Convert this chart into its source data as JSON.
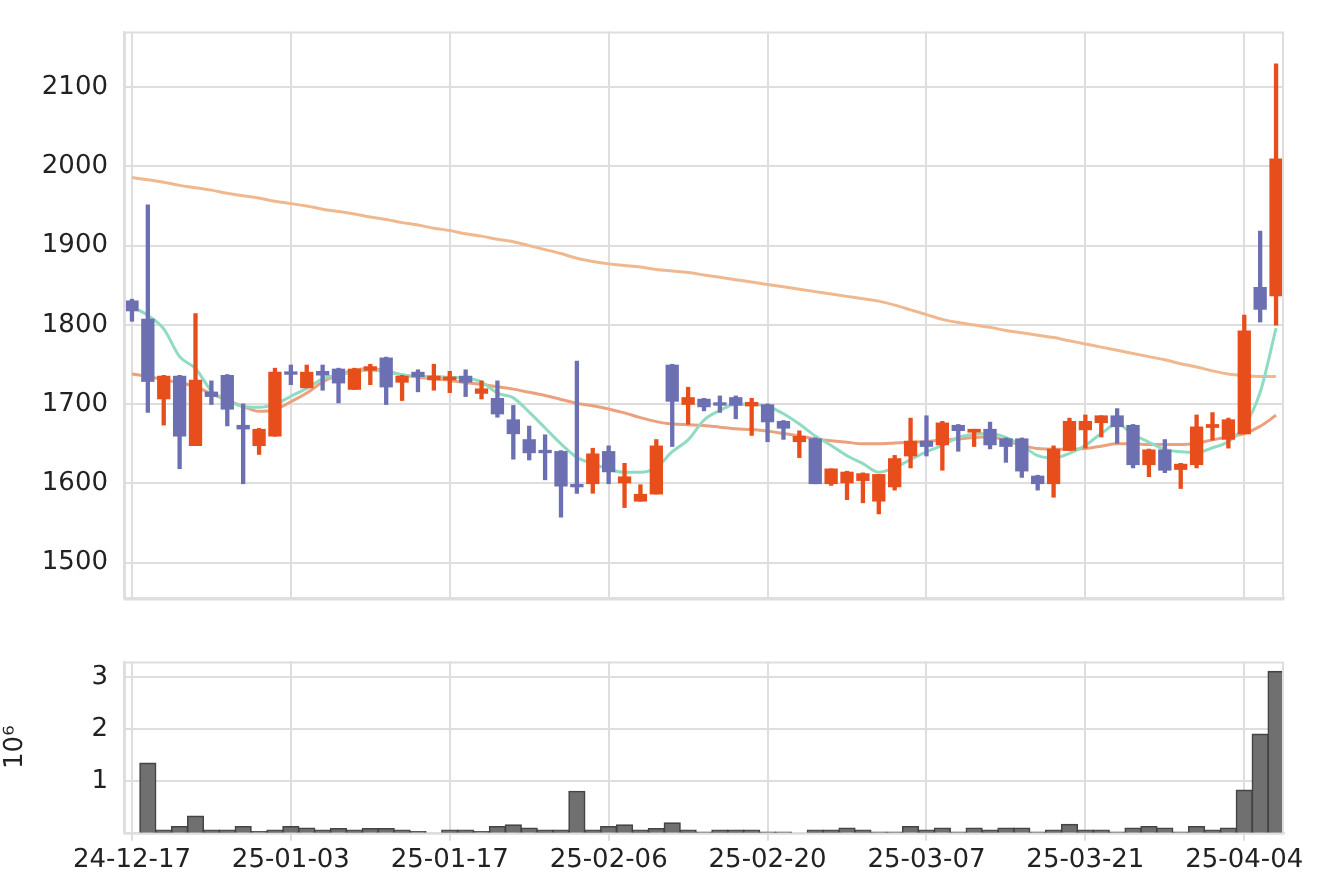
{
  "chart_data": [
    {
      "type": "candlestick",
      "categories": [
        null,
        null,
        null,
        null,
        null,
        null,
        null,
        null,
        null,
        null,
        null,
        null,
        null,
        null,
        null,
        null,
        null,
        null,
        null,
        null,
        null,
        null,
        null,
        null,
        null,
        null,
        null,
        null,
        null,
        null,
        null,
        null,
        null,
        null,
        null,
        null,
        null,
        null,
        null,
        null,
        null,
        null,
        null,
        null,
        null,
        null,
        null,
        null,
        null,
        null,
        null,
        null,
        null,
        null,
        null,
        null,
        null,
        null,
        null,
        null,
        null,
        null,
        null,
        null,
        null,
        null,
        null,
        null,
        null,
        null,
        null,
        null,
        null
      ],
      "ohlc": [
        [
          1830,
          1832,
          1805,
          1818
        ],
        [
          1807,
          1951,
          1690,
          1729
        ],
        [
          1707,
          1736,
          1674,
          1735
        ],
        [
          1735,
          1736,
          1619,
          1660
        ],
        [
          1648,
          1814,
          1648,
          1730
        ],
        [
          1715,
          1729,
          1700,
          1710
        ],
        [
          1736,
          1737,
          1673,
          1694
        ],
        [
          1673,
          1700,
          1600,
          1669
        ],
        [
          1648,
          1669,
          1637,
          1668
        ],
        [
          1660,
          1745,
          1660,
          1740
        ],
        [
          1740,
          1749,
          1725,
          1738
        ],
        [
          1721,
          1749,
          1721,
          1740
        ],
        [
          1741,
          1749,
          1718,
          1737
        ],
        [
          1744,
          1745,
          1702,
          1727
        ],
        [
          1719,
          1745,
          1719,
          1744
        ],
        [
          1743,
          1750,
          1725,
          1747
        ],
        [
          1758,
          1759,
          1700,
          1722
        ],
        [
          1728,
          1736,
          1705,
          1735
        ],
        [
          1740,
          1743,
          1716,
          1735
        ],
        [
          1731,
          1750,
          1718,
          1735
        ],
        [
          1731,
          1741,
          1715,
          1734
        ],
        [
          1735,
          1743,
          1710,
          1728
        ],
        [
          1714,
          1729,
          1707,
          1719
        ],
        [
          1707,
          1729,
          1684,
          1688
        ],
        [
          1680,
          1698,
          1631,
          1663
        ],
        [
          1655,
          1672,
          1630,
          1639
        ],
        [
          1641,
          1661,
          1605,
          1639
        ],
        [
          1640,
          1641,
          1558,
          1597
        ],
        [
          1598,
          1754,
          1588,
          1596
        ],
        [
          1600,
          1644,
          1588,
          1637
        ],
        [
          1640,
          1647,
          1600,
          1615
        ],
        [
          1601,
          1625,
          1570,
          1608
        ],
        [
          1578,
          1598,
          1578,
          1586
        ],
        [
          1587,
          1655,
          1587,
          1647
        ],
        [
          1749,
          1750,
          1647,
          1704
        ],
        [
          1700,
          1721,
          1675,
          1708
        ],
        [
          1706,
          1707,
          1692,
          1697
        ],
        [
          1701,
          1710,
          1690,
          1699
        ],
        [
          1708,
          1710,
          1682,
          1699
        ],
        [
          1698,
          1707,
          1661,
          1702
        ],
        [
          1699,
          1700,
          1653,
          1678
        ],
        [
          1678,
          1679,
          1656,
          1670
        ],
        [
          1653,
          1666,
          1633,
          1659
        ],
        [
          1656,
          1657,
          1600,
          1600
        ],
        [
          1600,
          1618,
          1598,
          1618
        ],
        [
          1601,
          1615,
          1580,
          1614
        ],
        [
          1604,
          1613,
          1576,
          1612
        ],
        [
          1578,
          1611,
          1562,
          1611
        ],
        [
          1596,
          1635,
          1592,
          1631
        ],
        [
          1635,
          1682,
          1620,
          1653
        ],
        [
          1653,
          1685,
          1635,
          1647
        ],
        [
          1649,
          1678,
          1617,
          1676
        ],
        [
          1673,
          1674,
          1641,
          1667
        ],
        [
          1665,
          1668,
          1647,
          1668
        ],
        [
          1668,
          1677,
          1644,
          1649
        ],
        [
          1656,
          1657,
          1627,
          1647
        ],
        [
          1656,
          1657,
          1608,
          1616
        ],
        [
          1609,
          1610,
          1592,
          1600
        ],
        [
          1600,
          1647,
          1583,
          1643
        ],
        [
          1642,
          1682,
          1642,
          1678
        ],
        [
          1668,
          1686,
          1645,
          1678
        ],
        [
          1677,
          1685,
          1659,
          1685
        ],
        [
          1685,
          1694,
          1651,
          1672
        ],
        [
          1673,
          1674,
          1620,
          1624
        ],
        [
          1624,
          1643,
          1609,
          1642
        ],
        [
          1642,
          1655,
          1614,
          1617
        ],
        [
          1618,
          1625,
          1594,
          1624
        ],
        [
          1624,
          1686,
          1620,
          1671
        ],
        [
          1671,
          1689,
          1655,
          1674
        ],
        [
          1656,
          1682,
          1645,
          1680
        ],
        [
          1663,
          1812,
          1663,
          1792
        ],
        [
          1847,
          1918,
          1804,
          1820
        ],
        [
          1837,
          2129,
          1800,
          2009
        ]
      ],
      "series": [
        {
          "type": "line",
          "color": "#8fdcc2",
          "values": [
            1823,
            1812,
            1795,
            1760,
            1745,
            1717,
            1705,
            1697,
            1696,
            1700,
            1710,
            1720,
            1732,
            1737,
            1741,
            1743,
            1741,
            1737,
            1735,
            1735,
            1734,
            1733,
            1728,
            1714,
            1708,
            1690,
            1670,
            1650,
            1633,
            1625,
            1618,
            1614,
            1614,
            1620,
            1640,
            1655,
            1680,
            1692,
            1700,
            1700,
            1697,
            1688,
            1675,
            1660,
            1648,
            1635,
            1625,
            1614,
            1620,
            1630,
            1640,
            1648,
            1658,
            1662,
            1663,
            1658,
            1648,
            1635,
            1632,
            1638,
            1648,
            1663,
            1675,
            1662,
            1652,
            1643,
            1640,
            1639,
            1645,
            1653,
            1672,
            1715,
            1796
          ]
        },
        {
          "type": "line",
          "color": "#eba17e",
          "values": [
            1738,
            1735,
            1731,
            1727,
            1722,
            1713,
            1705,
            1697,
            1691,
            1693,
            1703,
            1714,
            1728,
            1737,
            1743,
            1745,
            1742,
            1737,
            1734,
            1732,
            1730,
            1727,
            1725,
            1722,
            1719,
            1715,
            1711,
            1706,
            1701,
            1698,
            1694,
            1689,
            1683,
            1678,
            1675,
            1674,
            1673,
            1671,
            1669,
            1668,
            1666,
            1663,
            1660,
            1656,
            1654,
            1652,
            1650,
            1650,
            1651,
            1652,
            1653,
            1655,
            1656,
            1658,
            1659,
            1654,
            1648,
            1644,
            1643,
            1643,
            1644,
            1647,
            1650,
            1650,
            1649,
            1649,
            1649,
            1651,
            1655,
            1659,
            1663,
            1672,
            1686
          ]
        },
        {
          "type": "line",
          "color": "#f0b88e",
          "values": [
            1986,
            1983,
            1980,
            1976,
            1973,
            1970,
            1966,
            1963,
            1960,
            1956,
            1953,
            1950,
            1946,
            1943,
            1940,
            1936,
            1933,
            1929,
            1926,
            1922,
            1919,
            1915,
            1912,
            1908,
            1905,
            1900,
            1895,
            1890,
            1884,
            1880,
            1877,
            1875,
            1873,
            1870,
            1868,
            1866,
            1863,
            1860,
            1857,
            1854,
            1851,
            1848,
            1845,
            1842,
            1839,
            1836,
            1833,
            1830,
            1825,
            1819,
            1813,
            1807,
            1803,
            1800,
            1797,
            1793,
            1790,
            1787,
            1784,
            1780,
            1776,
            1772,
            1768,
            1764,
            1760,
            1756,
            1751,
            1747,
            1742,
            1738,
            1736,
            1735,
            1735
          ]
        }
      ],
      "ylim": [
        1455,
        2170
      ],
      "yticks": [
        1500,
        1600,
        1700,
        1800,
        1900,
        2000,
        2100
      ],
      "grid": true,
      "tick_labels": "y"
    },
    {
      "type": "bar",
      "ylabel": "10⁶",
      "categories": [
        "24-12-17",
        null,
        null,
        null,
        null,
        null,
        null,
        null,
        null,
        null,
        "25-01-03",
        null,
        null,
        null,
        null,
        null,
        null,
        null,
        null,
        null,
        "25-01-17",
        null,
        null,
        null,
        null,
        null,
        null,
        null,
        null,
        null,
        "25-02-06",
        null,
        null,
        null,
        null,
        null,
        null,
        null,
        null,
        null,
        "25-02-20",
        null,
        null,
        null,
        null,
        null,
        null,
        null,
        null,
        null,
        "25-03-07",
        null,
        null,
        null,
        null,
        null,
        null,
        null,
        null,
        null,
        "25-03-21",
        null,
        null,
        null,
        null,
        null,
        null,
        null,
        null,
        null,
        "25-04-04",
        null,
        null
      ],
      "values": [
        0,
        1.34,
        0.05,
        0.12,
        0.32,
        0.05,
        0.05,
        0.12,
        0.02,
        0.05,
        0.12,
        0.09,
        0.05,
        0.08,
        0.05,
        0.08,
        0.08,
        0.05,
        0.02,
        0,
        0.05,
        0.05,
        0.02,
        0.12,
        0.15,
        0.09,
        0.05,
        0.05,
        0.8,
        0.05,
        0.12,
        0.15,
        0.05,
        0.08,
        0.19,
        0.05,
        0.01,
        0.05,
        0.05,
        0.05,
        0.01,
        0.01,
        0,
        0.05,
        0.05,
        0.09,
        0.05,
        0.01,
        0.01,
        0.12,
        0.05,
        0.09,
        0.01,
        0.09,
        0.05,
        0.09,
        0.09,
        0.01,
        0.05,
        0.16,
        0.05,
        0.05,
        0.01,
        0.09,
        0.12,
        0.09,
        0.01,
        0.12,
        0.05,
        0.09,
        0.82,
        1.9,
        3.11
      ],
      "color": "#707070",
      "ylim": [
        0,
        3.3
      ],
      "yticks": [
        1,
        2,
        3
      ],
      "grid": true
    }
  ]
}
